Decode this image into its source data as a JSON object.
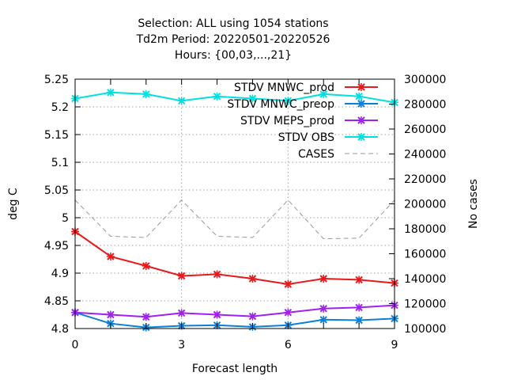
{
  "chart_data": {
    "type": "line",
    "title_lines": [
      "Selection: ALL using  1054 stations",
      "Td2m   Period: 20220501-20220526",
      "Hours: {00,03,...,21}"
    ],
    "xlabel": "Forecast length",
    "ylabel": "deg C",
    "y2label": "No cases",
    "x": [
      0,
      1,
      2,
      3,
      4,
      5,
      6,
      7,
      8,
      9
    ],
    "xticks": [
      0,
      3,
      6,
      9
    ],
    "xlim": [
      0,
      9
    ],
    "ylim": [
      4.8,
      5.25
    ],
    "yticks": [
      4.8,
      4.85,
      4.9,
      4.95,
      5,
      5.05,
      5.1,
      5.15,
      5.2,
      5.25
    ],
    "ytick_labels": [
      "4.8",
      "4.85",
      "4.9",
      "4.95",
      "5",
      "5.05",
      "5.1",
      "5.15",
      "5.2",
      "5.25"
    ],
    "y2lim": [
      100000,
      300000
    ],
    "y2ticks": [
      100000,
      120000,
      140000,
      160000,
      180000,
      200000,
      220000,
      240000,
      260000,
      280000,
      300000
    ],
    "y2tick_labels": [
      "100000",
      "120000",
      "140000",
      "160000",
      "180000",
      "200000",
      "220000",
      "240000",
      "260000",
      "280000",
      "300000"
    ],
    "grid": true,
    "legend_position": "top-right",
    "series": [
      {
        "name": "STDV MNWC_prod",
        "axis": "left",
        "color": "#e41a1c",
        "style": "solid",
        "marker": "x",
        "values": [
          4.975,
          4.93,
          4.913,
          4.895,
          4.898,
          4.89,
          4.88,
          4.89,
          4.888,
          4.882
        ]
      },
      {
        "name": "STDV MNWC_preop",
        "axis": "left",
        "color": "#0a7fd8",
        "style": "solid",
        "marker": "x",
        "values": [
          4.829,
          4.809,
          4.802,
          4.805,
          4.806,
          4.803,
          4.806,
          4.816,
          4.815,
          4.818
        ]
      },
      {
        "name": "STDV MEPS_prod",
        "axis": "left",
        "color": "#a020f0",
        "style": "solid",
        "marker": "x",
        "values": [
          4.829,
          4.825,
          4.821,
          4.828,
          4.825,
          4.822,
          4.829,
          4.836,
          4.838,
          4.842
        ]
      },
      {
        "name": "STDV OBS",
        "axis": "left",
        "color": "#00e0e0",
        "style": "solid",
        "marker": "x",
        "values": [
          5.215,
          5.226,
          5.223,
          5.211,
          5.219,
          5.215,
          5.211,
          5.223,
          5.219,
          5.208
        ]
      },
      {
        "name": "CASES",
        "axis": "right",
        "color": "#999999",
        "style": "dashed",
        "marker": "none",
        "values": [
          203000,
          174000,
          173000,
          203000,
          174000,
          173000,
          203000,
          172000,
          172500,
          203000
        ]
      }
    ]
  }
}
